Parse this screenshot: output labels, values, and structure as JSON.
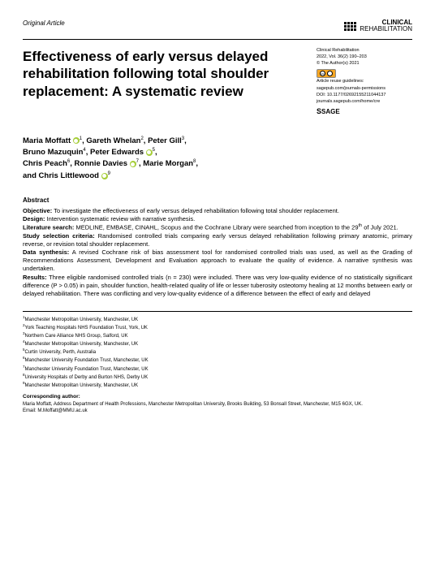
{
  "header": {
    "article_type": "Original Article",
    "brand_line1": "CLINICAL",
    "brand_line2": "REHABILITATION"
  },
  "meta": {
    "line1": "Clinical Rehabilitation",
    "line2": "2022, Vol. 36(2) 190–203",
    "line3": "© The Author(s) 2021",
    "reuse": "Article reuse guidelines:",
    "reuse_url": "sagepub.com/journals-permissions",
    "doi": "DOI: 10.1177/02692155211044137",
    "journal_url": "journals.sagepub.com/home/cre",
    "publisher": "SAGE"
  },
  "title": "Effectiveness of early versus delayed rehabilitation following total shoulder replacement: A systematic review",
  "authors": {
    "a1_name": "Maria Moffatt",
    "a1_aff": "1",
    "a2_name": "Gareth Whelan",
    "a2_aff": "2",
    "a3_name": "Peter Gill",
    "a3_aff": "3",
    "a4_name": "Bruno Mazuquin",
    "a4_aff": "4",
    "a5_name": "Peter Edwards",
    "a5_aff": "5",
    "a6_name": "Chris Peach",
    "a6_aff": "6",
    "a7_name": "Ronnie Davies",
    "a7_aff": "7",
    "a8_name": "Marie Morgan",
    "a8_aff": "8",
    "a9_name": "Chris Littlewood",
    "a9_aff": "9"
  },
  "abstract": {
    "heading": "Abstract",
    "objective_label": "Objective:",
    "objective": " To investigate the effectiveness of early versus delayed rehabilitation following total shoulder replacement.",
    "design_label": "Design:",
    "design": " Intervention systematic review with narrative synthesis.",
    "search_label": "Literature search:",
    "search": " MEDLINE, EMBASE, CINAHL, Scopus and the Cochrane Library were searched from inception to the 29",
    "search_suffix": " of July 2021.",
    "criteria_label": "Study selection criteria:",
    "criteria": " Randomised controlled trials comparing early versus delayed rehabilitation following primary anatomic, primary reverse, or revision total shoulder replacement.",
    "synthesis_label": "Data synthesis:",
    "synthesis": " A revised Cochrane risk of bias assessment tool for randomised controlled trials was used, as well as the Grading of Recommendations Assessment, Development and Evaluation approach to evaluate the quality of evidence. A narrative synthesis was undertaken.",
    "results_label": "Results:",
    "results": " Three eligible randomised controlled trials (n = 230) were included. There was very low-quality evidence of no statistically significant difference (P > 0.05) in pain, shoulder function, health-related quality of life or lesser tuberosity osteotomy healing at 12 months between early or delayed rehabilitation. There was conflicting and very low-quality evidence of a difference between the effect of early and delayed"
  },
  "affiliations": {
    "a1": "Manchester Metropolitan University, Manchester, UK",
    "a2": "York Teaching Hospitals NHS Foundation Trust, York, UK",
    "a3": "Northern Care Alliance NHS Group, Salford, UK",
    "a4": "Manchester Metropolitan University, Manchester, UK",
    "a5": "Curtin University, Perth, Australia",
    "a6": "Manchester University Foundation Trust, Manchester, UK",
    "a7": "Manchester University Foundation Trust, Manchester, UK",
    "a8": "University Hospitals of Derby and Burton NHS, Derby UK",
    "a9": "Manchester Metropolitan University, Manchester, UK"
  },
  "corresponding": {
    "heading": "Corresponding author:",
    "body": "Maria Moffatt, Address Department of Health Professions, Manchester Metropolitan University, Brooks Building, 53 Bonsall Street, Manchester, M15 6GX, UK.",
    "email_label": "Email: ",
    "email": "M.Moffatt@MMU.ac.uk"
  }
}
